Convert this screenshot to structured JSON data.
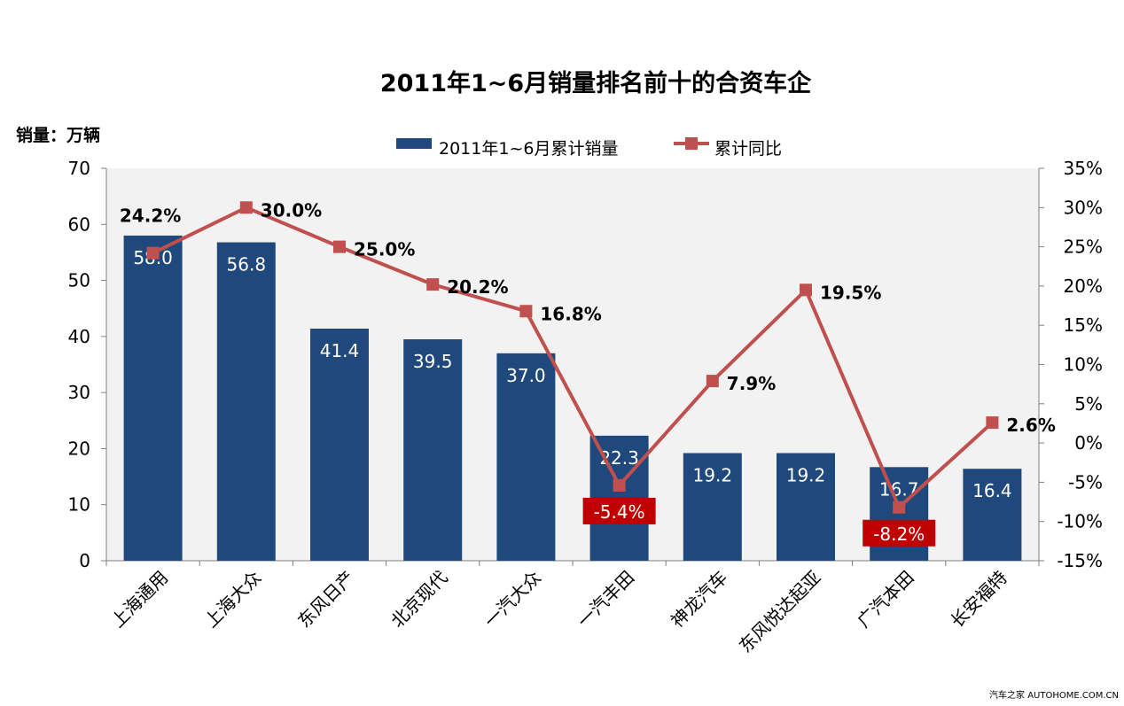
{
  "chart_data": {
    "type": "bar",
    "title": "2011年1~6月销量排名前十的合资车企",
    "ylabel_left": "销量：万辆",
    "categories": [
      "上海通用",
      "上海大众",
      "东风日产",
      "北京现代",
      "一汽大众",
      "一汽丰田",
      "神龙汽车",
      "东风悦达起亚",
      "广汽本田",
      "长安福特"
    ],
    "series": [
      {
        "name": "2011年1~6月累计销量",
        "type": "bar",
        "axis": "left",
        "color": "#1f497d",
        "values": [
          58.0,
          56.8,
          41.4,
          39.5,
          37.0,
          22.3,
          19.2,
          19.2,
          16.7,
          16.4
        ],
        "labels": [
          "58.0",
          "56.8",
          "41.4",
          "39.5",
          "37.0",
          "22.3",
          "19.2",
          "19.2",
          "16.7",
          "16.4"
        ]
      },
      {
        "name": "累计同比",
        "type": "line",
        "axis": "right",
        "color": "#c0504d",
        "values": [
          24.2,
          30.0,
          25.0,
          20.2,
          16.8,
          -5.4,
          7.9,
          19.5,
          -8.2,
          2.6
        ],
        "labels": [
          "24.2%",
          "30.0%",
          "25.0%",
          "20.2%",
          "16.8%",
          "-5.4%",
          "7.9%",
          "19.5%",
          "-8.2%",
          "2.6%"
        ]
      }
    ],
    "ylim_left": [
      0,
      70
    ],
    "yticks_left": [
      "0",
      "10",
      "20",
      "30",
      "40",
      "50",
      "60",
      "70"
    ],
    "ylim_right": [
      -15,
      35
    ],
    "yticks_right": [
      "-15%",
      "-10%",
      "-5%",
      "0%",
      "5%",
      "10%",
      "15%",
      "20%",
      "25%",
      "30%",
      "35%"
    ],
    "negative_label_bg": "#c00000",
    "plot_background": "#f2f2f2",
    "grid": false,
    "legend_position": "top-center"
  },
  "footer_text": "汽车之家 AUTOHOME.COM.CN"
}
